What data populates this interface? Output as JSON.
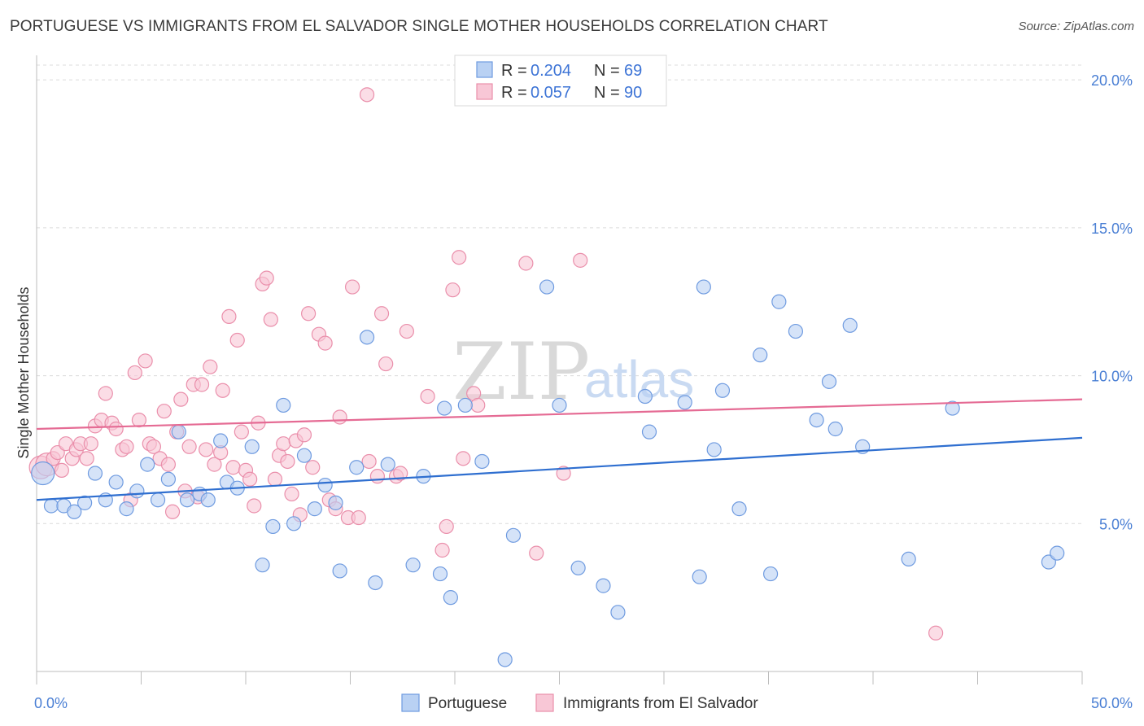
{
  "title": "PORTUGUESE VS IMMIGRANTS FROM EL SALVADOR SINGLE MOTHER HOUSEHOLDS CORRELATION CHART",
  "source": "Source: ZipAtlas.com",
  "watermark": {
    "part1": "ZIP",
    "part2": "atlas"
  },
  "colors": {
    "blue_fill": "#b9d1f3",
    "blue_stroke": "#6f9be0",
    "blue_line": "#2f6fd0",
    "pink_fill": "#f8c7d6",
    "pink_stroke": "#ea8fab",
    "pink_line": "#e56b94",
    "grid": "#dcdcdc",
    "tick": "#4a7fd4"
  },
  "legend": {
    "r_label": "R =",
    "n_label": "N =",
    "rows": [
      {
        "series": "Portuguese",
        "r": "0.204",
        "n": "69"
      },
      {
        "series": "Immigrants from El Salvador",
        "r": "0.057",
        "n": "90"
      }
    ]
  },
  "chart_data": {
    "type": "scatter",
    "title": "PORTUGUESE VS IMMIGRANTS FROM EL SALVADOR SINGLE MOTHER HOUSEHOLDS CORRELATION CHART",
    "xlabel": "",
    "ylabel": "Single Mother Households",
    "xlim": [
      0,
      50
    ],
    "ylim": [
      0,
      20.5
    ],
    "x_tick_labels": [
      "0.0%",
      "50.0%"
    ],
    "y_ticks": [
      5,
      10,
      15,
      20
    ],
    "y_tick_labels": [
      "5.0%",
      "10.0%",
      "15.0%",
      "20.0%"
    ],
    "grid": true,
    "series": [
      {
        "name": "Portuguese",
        "color": "blue",
        "trend": {
          "x": [
            0,
            50
          ],
          "y": [
            5.8,
            7.9
          ]
        },
        "points": [
          [
            0.3,
            6.7
          ],
          [
            0.7,
            5.6
          ],
          [
            1.3,
            5.6
          ],
          [
            1.8,
            5.4
          ],
          [
            2.3,
            5.7
          ],
          [
            2.8,
            6.7
          ],
          [
            3.3,
            5.8
          ],
          [
            3.8,
            6.4
          ],
          [
            4.3,
            5.5
          ],
          [
            4.8,
            6.1
          ],
          [
            5.3,
            7.0
          ],
          [
            5.8,
            5.8
          ],
          [
            6.3,
            6.5
          ],
          [
            6.8,
            8.1
          ],
          [
            7.2,
            5.8
          ],
          [
            7.8,
            6.0
          ],
          [
            8.2,
            5.8
          ],
          [
            8.8,
            7.8
          ],
          [
            9.1,
            6.4
          ],
          [
            9.6,
            6.2
          ],
          [
            10.3,
            7.6
          ],
          [
            11.3,
            4.9
          ],
          [
            10.8,
            3.6
          ],
          [
            11.8,
            9.0
          ],
          [
            12.3,
            5.0
          ],
          [
            12.8,
            7.3
          ],
          [
            13.3,
            5.5
          ],
          [
            13.8,
            6.3
          ],
          [
            14.3,
            5.7
          ],
          [
            14.5,
            3.4
          ],
          [
            15.3,
            6.9
          ],
          [
            15.8,
            11.3
          ],
          [
            16.2,
            3.0
          ],
          [
            16.8,
            7.0
          ],
          [
            18.0,
            3.6
          ],
          [
            18.5,
            6.6
          ],
          [
            19.3,
            3.3
          ],
          [
            19.5,
            8.9
          ],
          [
            19.8,
            2.5
          ],
          [
            20.5,
            9.0
          ],
          [
            21.3,
            7.1
          ],
          [
            22.4,
            0.4
          ],
          [
            22.8,
            4.6
          ],
          [
            24.4,
            13.0
          ],
          [
            25.0,
            9.0
          ],
          [
            25.9,
            3.5
          ],
          [
            27.1,
            2.9
          ],
          [
            27.8,
            2.0
          ],
          [
            29.1,
            9.3
          ],
          [
            29.3,
            8.1
          ],
          [
            31.0,
            9.1
          ],
          [
            31.7,
            3.2
          ],
          [
            31.9,
            13.0
          ],
          [
            32.4,
            7.5
          ],
          [
            32.8,
            9.5
          ],
          [
            33.6,
            5.5
          ],
          [
            34.6,
            10.7
          ],
          [
            35.1,
            3.3
          ],
          [
            35.5,
            12.5
          ],
          [
            36.3,
            11.5
          ],
          [
            37.3,
            8.5
          ],
          [
            37.9,
            9.8
          ],
          [
            38.2,
            8.2
          ],
          [
            38.9,
            11.7
          ],
          [
            39.5,
            7.6
          ],
          [
            41.7,
            3.8
          ],
          [
            43.8,
            8.9
          ],
          [
            48.4,
            3.7
          ],
          [
            48.8,
            4.0
          ]
        ]
      },
      {
        "name": "Immigrants from El Salvador",
        "color": "pink",
        "trend": {
          "x": [
            0,
            50
          ],
          "y": [
            8.2,
            9.2
          ]
        },
        "points": [
          [
            0.2,
            6.9
          ],
          [
            0.5,
            7.0
          ],
          [
            0.8,
            7.2
          ],
          [
            1.0,
            7.4
          ],
          [
            1.2,
            6.8
          ],
          [
            1.4,
            7.7
          ],
          [
            1.7,
            7.2
          ],
          [
            1.9,
            7.5
          ],
          [
            2.1,
            7.7
          ],
          [
            2.4,
            7.2
          ],
          [
            2.6,
            7.7
          ],
          [
            2.8,
            8.3
          ],
          [
            3.1,
            8.5
          ],
          [
            3.3,
            9.4
          ],
          [
            3.6,
            8.4
          ],
          [
            3.8,
            8.2
          ],
          [
            4.1,
            7.5
          ],
          [
            4.3,
            7.6
          ],
          [
            4.5,
            5.8
          ],
          [
            4.7,
            10.1
          ],
          [
            4.9,
            8.5
          ],
          [
            5.2,
            10.5
          ],
          [
            5.4,
            7.7
          ],
          [
            5.6,
            7.6
          ],
          [
            5.9,
            7.2
          ],
          [
            6.1,
            8.8
          ],
          [
            6.3,
            7.0
          ],
          [
            6.5,
            5.4
          ],
          [
            6.7,
            8.1
          ],
          [
            6.9,
            9.2
          ],
          [
            7.1,
            6.1
          ],
          [
            7.3,
            7.6
          ],
          [
            7.5,
            9.7
          ],
          [
            7.7,
            5.9
          ],
          [
            7.9,
            9.7
          ],
          [
            8.1,
            7.5
          ],
          [
            8.3,
            10.3
          ],
          [
            8.5,
            7.0
          ],
          [
            8.8,
            7.4
          ],
          [
            8.9,
            9.5
          ],
          [
            9.2,
            12.0
          ],
          [
            9.4,
            6.9
          ],
          [
            9.6,
            11.2
          ],
          [
            9.8,
            8.1
          ],
          [
            10.0,
            6.8
          ],
          [
            10.2,
            6.5
          ],
          [
            10.4,
            5.6
          ],
          [
            10.6,
            8.4
          ],
          [
            10.8,
            13.1
          ],
          [
            11.0,
            13.3
          ],
          [
            11.2,
            11.9
          ],
          [
            11.4,
            6.5
          ],
          [
            11.6,
            7.3
          ],
          [
            11.8,
            7.7
          ],
          [
            12.0,
            7.1
          ],
          [
            12.2,
            6.0
          ],
          [
            12.4,
            7.8
          ],
          [
            12.6,
            5.3
          ],
          [
            12.8,
            8.0
          ],
          [
            13.0,
            12.1
          ],
          [
            13.2,
            6.9
          ],
          [
            13.5,
            11.4
          ],
          [
            13.8,
            11.1
          ],
          [
            14.0,
            5.8
          ],
          [
            14.3,
            5.5
          ],
          [
            14.5,
            8.6
          ],
          [
            14.9,
            5.2
          ],
          [
            15.1,
            13.0
          ],
          [
            15.4,
            5.2
          ],
          [
            15.9,
            7.1
          ],
          [
            16.3,
            6.6
          ],
          [
            16.5,
            12.1
          ],
          [
            16.7,
            10.4
          ],
          [
            17.2,
            6.6
          ],
          [
            17.4,
            6.7
          ],
          [
            17.7,
            11.5
          ],
          [
            18.7,
            9.3
          ],
          [
            19.4,
            4.1
          ],
          [
            19.6,
            4.9
          ],
          [
            19.9,
            12.9
          ],
          [
            20.2,
            14.0
          ],
          [
            20.4,
            7.2
          ],
          [
            20.9,
            9.4
          ],
          [
            21.1,
            9.0
          ],
          [
            23.4,
            13.8
          ],
          [
            23.9,
            4.0
          ],
          [
            25.2,
            6.7
          ],
          [
            26.0,
            13.9
          ],
          [
            43.0,
            1.3
          ],
          [
            15.8,
            19.5
          ]
        ]
      }
    ]
  },
  "bottom_legend": [
    {
      "label": "Portuguese",
      "color": "blue"
    },
    {
      "label": "Immigrants from El Salvador",
      "color": "pink"
    }
  ]
}
